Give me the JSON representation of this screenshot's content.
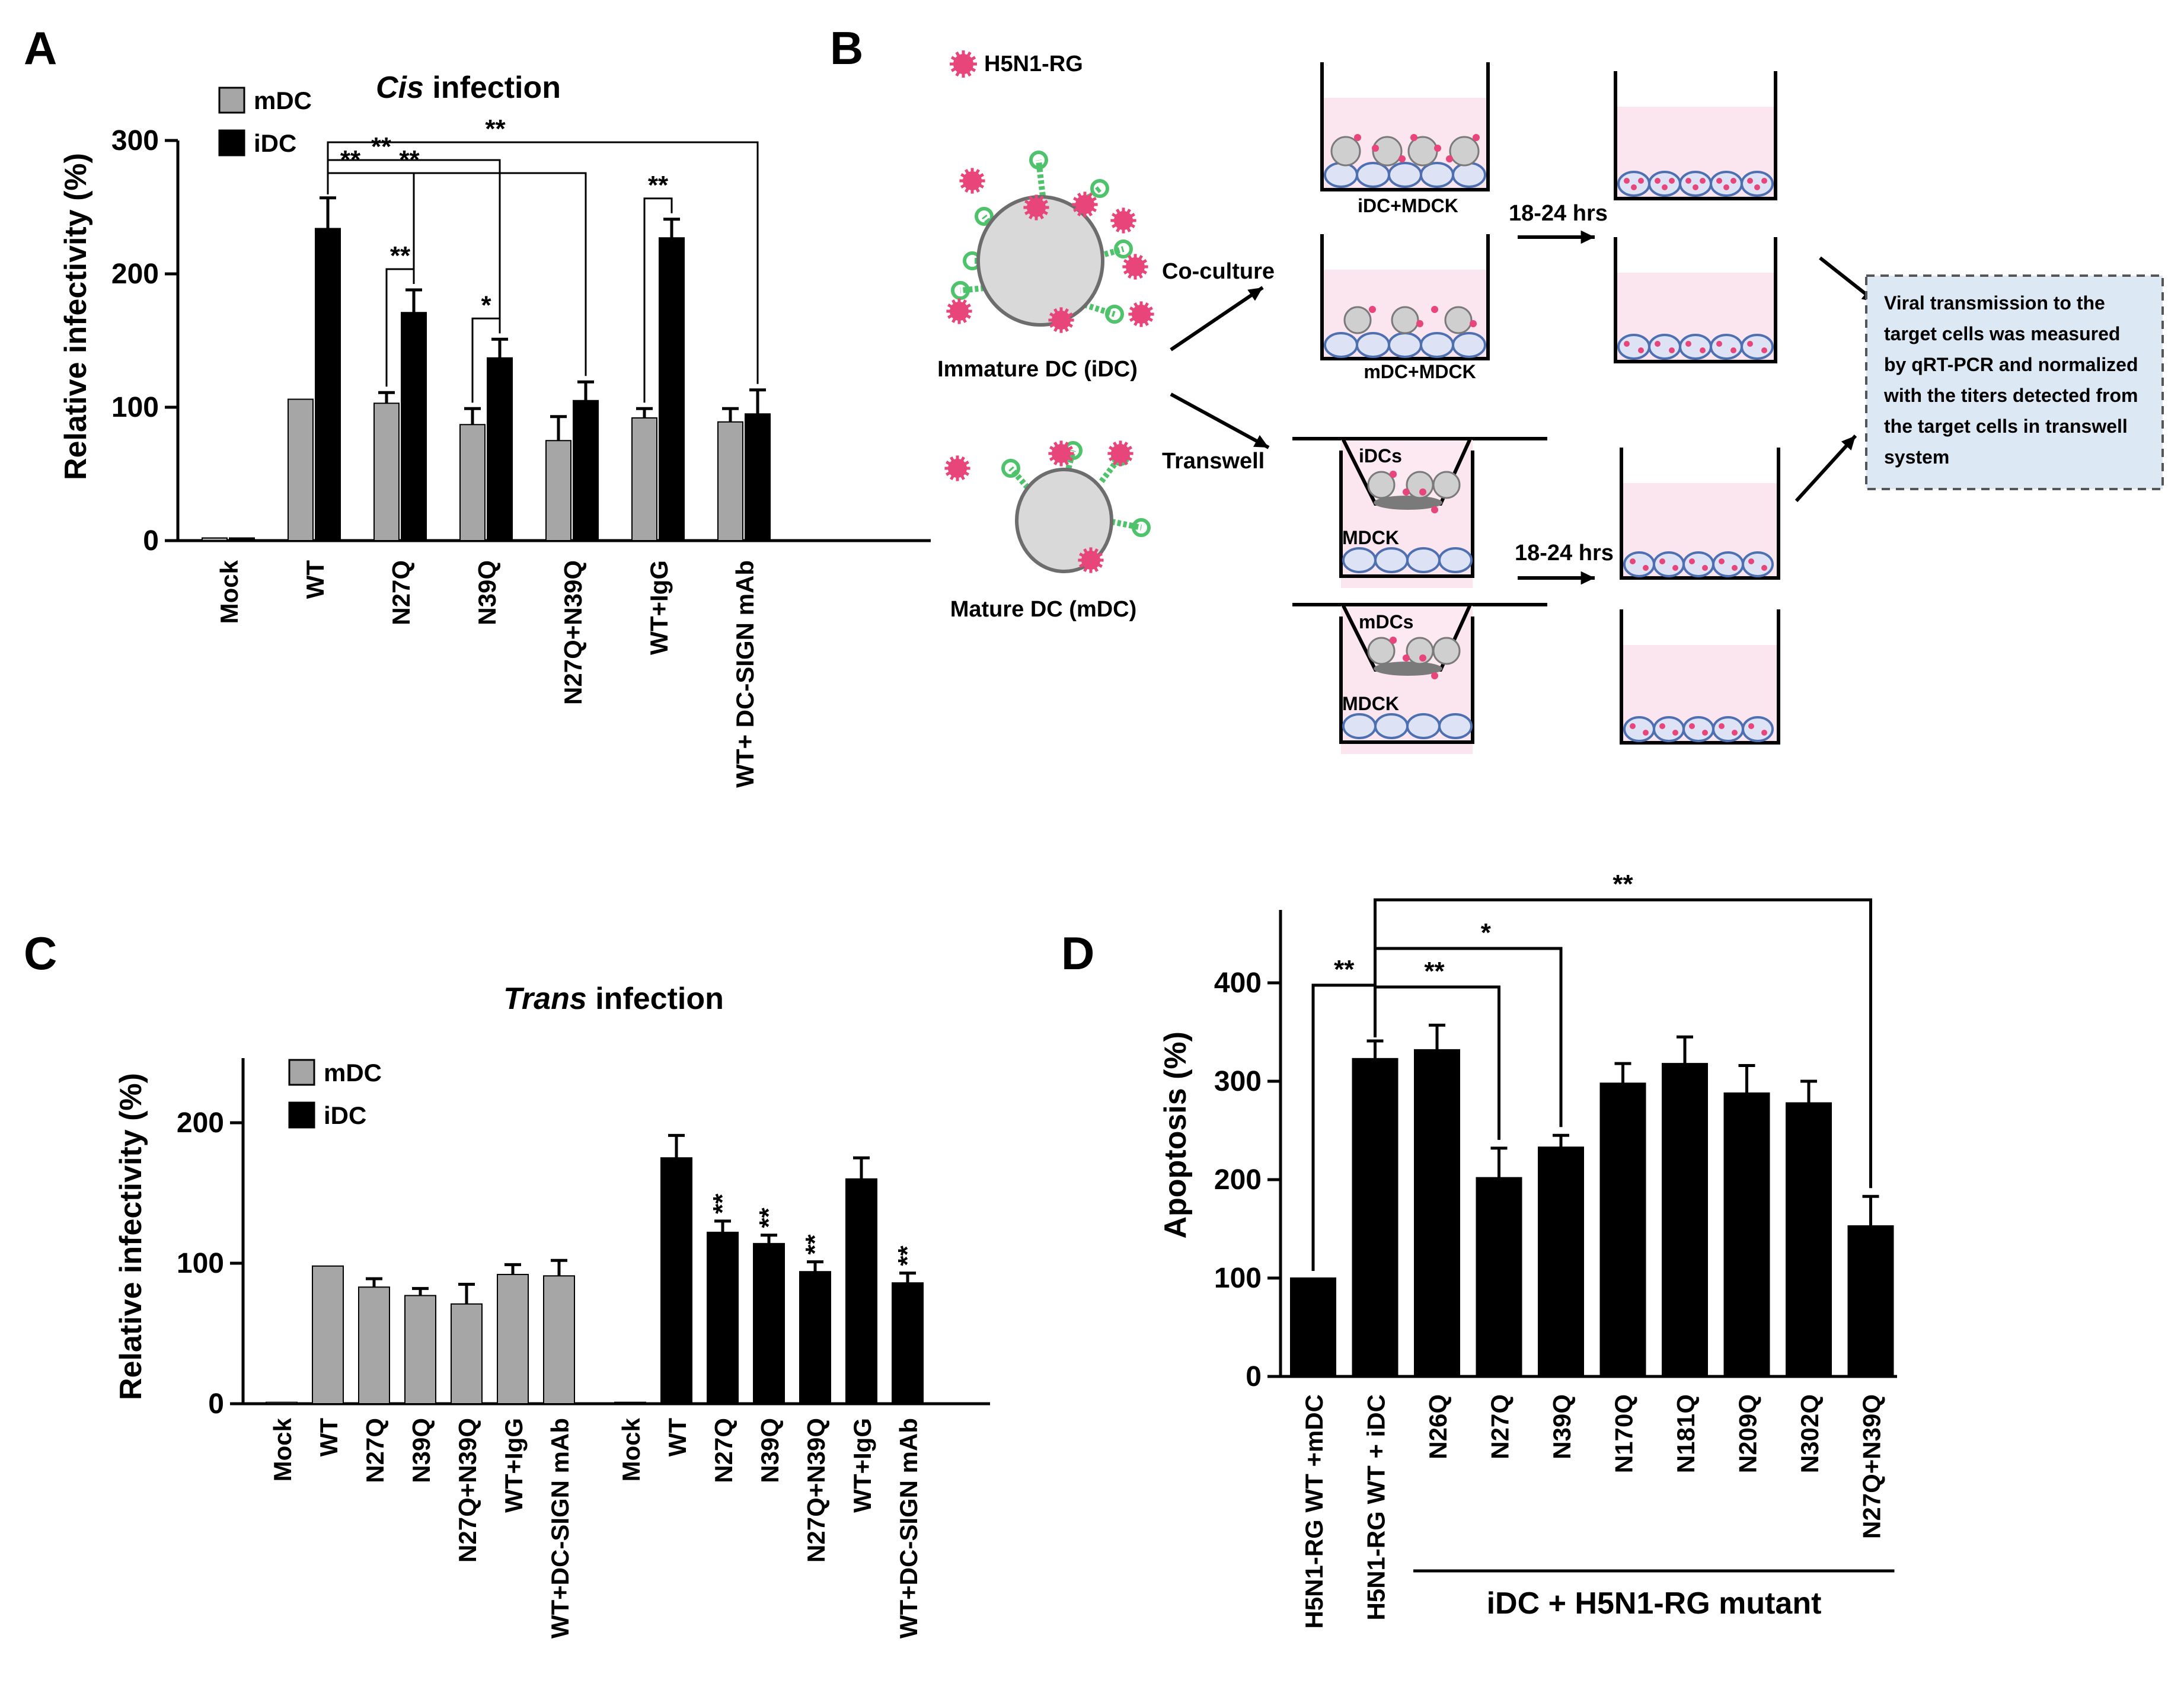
{
  "colors": {
    "mdc": "#a6a6a6",
    "idc": "#000000",
    "virion": "#e8457a",
    "medium": "#fbe6f0",
    "cell": "#dde3f4",
    "cell_edge": "#4e6fb0",
    "note_bg": "#dde8f5",
    "receptor": "#4fc36b"
  },
  "panels": {
    "a": "A",
    "b": "B",
    "c": "C",
    "d": "D"
  },
  "chart_data": [
    {
      "id": "A",
      "type": "bar",
      "title_italic": "Cis",
      "title_rest": " infection",
      "ylabel": "Relative infectivity (%)",
      "yticks": [
        "0",
        "100",
        "200",
        "300"
      ],
      "ylim": [
        0,
        300
      ],
      "categories": [
        "Mock",
        "WT",
        "N27Q",
        "N39Q",
        "N27Q+N39Q",
        "WT+IgG",
        "WT+ DC-SIGN mAb"
      ],
      "legend": [
        "mDC",
        "iDC"
      ],
      "series": [
        {
          "name": "mDC",
          "values": [
            2,
            106,
            103,
            87,
            75,
            92,
            89
          ],
          "errors": [
            0,
            0,
            8,
            12,
            18,
            7,
            10
          ]
        },
        {
          "name": "iDC",
          "values": [
            2,
            234,
            171,
            137,
            105,
            227,
            95
          ],
          "errors": [
            0,
            23,
            17,
            14,
            14,
            14,
            18
          ]
        }
      ],
      "brackets": [
        {
          "from": [
            1,
            1
          ],
          "to": [
            2,
            1
          ],
          "label": "**"
        },
        {
          "from": [
            1,
            1
          ],
          "to": [
            3,
            1
          ],
          "label": "**"
        },
        {
          "from": [
            1,
            1
          ],
          "to": [
            4,
            1
          ],
          "label": "**"
        },
        {
          "from": [
            1,
            1
          ],
          "to": [
            6,
            1
          ],
          "label": "**"
        },
        {
          "from": [
            2,
            0
          ],
          "to": [
            2,
            1
          ],
          "label": "**"
        },
        {
          "from": [
            3,
            0
          ],
          "to": [
            3,
            1
          ],
          "label": "*"
        },
        {
          "from": [
            5,
            0
          ],
          "to": [
            5,
            1
          ],
          "label": "**"
        }
      ]
    },
    {
      "id": "C",
      "type": "bar",
      "title_italic": "Trans",
      "title_rest": " infection",
      "ylabel": "Relative infectivity  (%)",
      "yticks": [
        "0",
        "100",
        "200"
      ],
      "ylim": [
        0,
        250
      ],
      "legend": [
        "mDC",
        "iDC"
      ],
      "series": [
        {
          "name": "mDC",
          "categories": [
            "Mock",
            "WT",
            "N27Q",
            "N39Q",
            "N27Q+N39Q",
            "WT+IgG",
            "WT+DC-SIGN mAb"
          ],
          "values": [
            1,
            98,
            83,
            77,
            71,
            92,
            91
          ],
          "errors": [
            0,
            0,
            6,
            5,
            14,
            7,
            11
          ]
        },
        {
          "name": "iDC",
          "categories": [
            "Mock",
            "WT",
            "N27Q",
            "N39Q",
            "N27Q+N39Q",
            "WT+IgG",
            "WT+DC-SIGN mAb"
          ],
          "values": [
            1,
            175,
            122,
            114,
            94,
            160,
            86
          ],
          "errors": [
            0,
            16,
            8,
            6,
            7,
            15,
            7
          ],
          "stars": [
            "",
            "",
            "**",
            "**",
            "**",
            "",
            "**"
          ]
        }
      ]
    },
    {
      "id": "D",
      "type": "bar",
      "ylabel": "Apoptosis (%)",
      "yticks": [
        "0",
        "100",
        "200",
        "300",
        "400"
      ],
      "ylim": [
        0,
        400
      ],
      "categories": [
        "H5N1-RG WT +mDC",
        "H5N1-RG WT + iDC",
        "N26Q",
        "N27Q",
        "N39Q",
        "N170Q",
        "N181Q",
        "N209Q",
        "N302Q",
        "N27Q+N39Q"
      ],
      "values": [
        100,
        323,
        332,
        202,
        233,
        298,
        318,
        288,
        278,
        153
      ],
      "errors": [
        0,
        18,
        25,
        30,
        12,
        20,
        27,
        28,
        22,
        30
      ],
      "group_label": "iDC + H5N1-RG mutant",
      "brackets": [
        {
          "from": 0,
          "to": 1,
          "label": "**"
        },
        {
          "from": 1,
          "to": 3,
          "label": "**"
        },
        {
          "from": 1,
          "to": 4,
          "label": "*"
        },
        {
          "from": 1,
          "to": 9,
          "label": "**"
        }
      ]
    }
  ],
  "diagram_b": {
    "virus_label": "H5N1-RG",
    "idc_label": "Immature DC (iDC)",
    "mdc_label": "Mature DC (mDC)",
    "coculture_label": "Co-culture",
    "transwell_label": "Transwell",
    "well1_label": "iDC+MDCK",
    "well2_label": "mDC+MDCK",
    "insert1_label": "iDCs",
    "insert2_label": "mDCs",
    "mdck_label": "MDCK",
    "time1": "18-24 hrs",
    "time2": "18-24 hrs",
    "note_lines": [
      "Viral transmission to the",
      "target cells was measured",
      "by qRT-PCR and normalized",
      "with the titers detected from",
      "the target cells in transwell",
      "system"
    ]
  }
}
